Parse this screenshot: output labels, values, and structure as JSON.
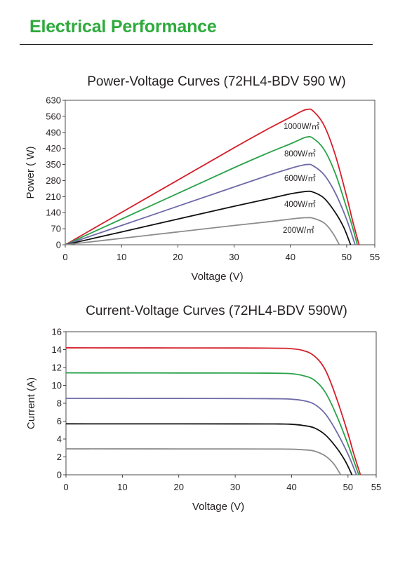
{
  "header": {
    "title": "Electrical Performance"
  },
  "colors": {
    "brand": "#2eaa3c",
    "series": {
      "1000": "#d4202a",
      "800": "#2aa24a",
      "600": "#6e6aa8",
      "400": "#111111",
      "200": "#8c8c8c"
    }
  },
  "chart_data": [
    {
      "type": "line",
      "title": "Power-Voltage Curves (72HL4-BDV 590 W)",
      "xlabel": "Voltage (V)",
      "ylabel": "Power ( W)",
      "xlim": [
        0,
        55
      ],
      "ylim": [
        0,
        630
      ],
      "xticks": [
        0,
        10,
        20,
        30,
        40,
        50,
        55
      ],
      "yticks": [
        0,
        70,
        140,
        210,
        280,
        350,
        420,
        490,
        560,
        630
      ],
      "grid": false,
      "series": [
        {
          "name": "1000W/㎡",
          "key": "1000",
          "x": [
            0,
            10,
            20,
            30,
            36,
            40,
            42,
            43,
            44,
            46,
            48,
            50,
            51,
            52.2
          ],
          "y": [
            0,
            141,
            282,
            423,
            505,
            556,
            582,
            590,
            584,
            520,
            390,
            210,
            110,
            0
          ]
        },
        {
          "name": "800W/㎡",
          "key": "800",
          "x": [
            0,
            10,
            20,
            30,
            36,
            40,
            42,
            43,
            44,
            46,
            48,
            50,
            51,
            51.9
          ],
          "y": [
            0,
            112,
            224,
            336,
            400,
            440,
            462,
            470,
            465,
            415,
            310,
            160,
            80,
            0
          ]
        },
        {
          "name": "600W/㎡",
          "key": "600",
          "x": [
            0,
            10,
            20,
            30,
            36,
            40,
            42,
            43,
            44,
            46,
            48,
            50,
            51.5
          ],
          "y": [
            0,
            84,
            168,
            252,
            302,
            333,
            346,
            350,
            345,
            305,
            225,
            110,
            0
          ]
        },
        {
          "name": "400W/㎡",
          "key": "400",
          "x": [
            0,
            10,
            20,
            30,
            36,
            40,
            42,
            43,
            44,
            46,
            48,
            49.5,
            50.7
          ],
          "y": [
            0,
            56,
            112,
            168,
            200,
            222,
            230,
            233,
            230,
            203,
            140,
            75,
            0
          ]
        },
        {
          "name": "200W/㎡",
          "key": "200",
          "x": [
            0,
            10,
            20,
            30,
            36,
            40,
            42,
            43,
            44,
            46,
            47.5,
            48.7
          ],
          "y": [
            0,
            28,
            56,
            84,
            100,
            112,
            117,
            118,
            116,
            95,
            52,
            0
          ]
        }
      ]
    },
    {
      "type": "line",
      "title": "Current-Voltage Curves (72HL4-BDV 590W)",
      "xlabel": "Voltage (V)",
      "ylabel": "Current (A)",
      "xlim": [
        0,
        55
      ],
      "ylim": [
        0,
        16
      ],
      "xticks": [
        0,
        10,
        20,
        30,
        40,
        50,
        55
      ],
      "yticks": [
        0,
        2,
        4,
        6,
        8,
        10,
        12,
        14,
        16
      ],
      "grid": false,
      "series": [
        {
          "key": "1000",
          "x": [
            0,
            30,
            38,
            40,
            42,
            44,
            46,
            48,
            50,
            51,
            52.2
          ],
          "y": [
            14.2,
            14.18,
            14.15,
            14.1,
            13.9,
            13.3,
            11.7,
            8.5,
            4.6,
            2.4,
            0
          ]
        },
        {
          "key": "800",
          "x": [
            0,
            30,
            38,
            40,
            42,
            44,
            46,
            48,
            50,
            51,
            51.9
          ],
          "y": [
            11.4,
            11.38,
            11.35,
            11.3,
            11.1,
            10.6,
            9.2,
            6.6,
            3.4,
            1.6,
            0
          ]
        },
        {
          "key": "600",
          "x": [
            0,
            30,
            38,
            40,
            42,
            44,
            46,
            48,
            50,
            51.5
          ],
          "y": [
            8.55,
            8.53,
            8.5,
            8.45,
            8.3,
            7.9,
            6.8,
            4.8,
            2.3,
            0
          ]
        },
        {
          "key": "400",
          "x": [
            0,
            30,
            38,
            40,
            42,
            44,
            46,
            48,
            49.5,
            50.7
          ],
          "y": [
            5.7,
            5.69,
            5.68,
            5.65,
            5.52,
            5.25,
            4.45,
            3.0,
            1.55,
            0
          ]
        },
        {
          "key": "200",
          "x": [
            0,
            30,
            38,
            40,
            42,
            44,
            46,
            47.5,
            48.7
          ],
          "y": [
            2.9,
            2.89,
            2.88,
            2.86,
            2.8,
            2.66,
            2.1,
            1.2,
            0
          ]
        }
      ]
    }
  ]
}
